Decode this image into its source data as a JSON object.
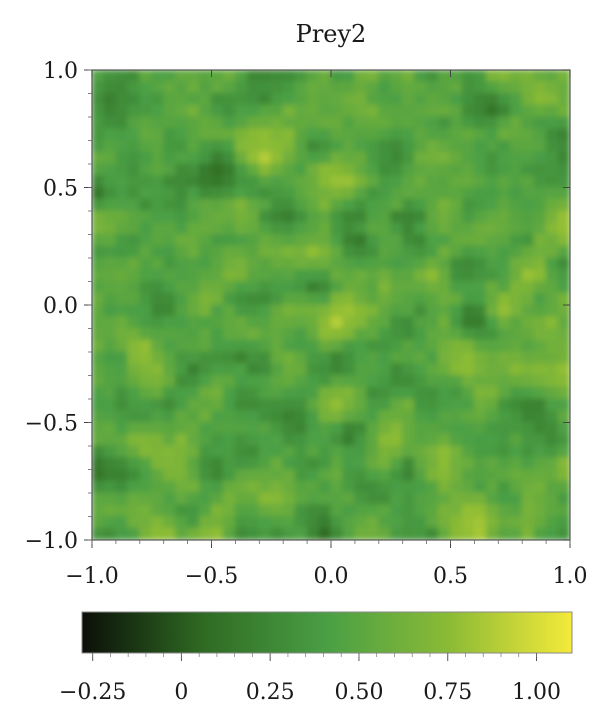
{
  "chart_data": {
    "type": "heatmap",
    "title": "Prey2",
    "xlabel": "",
    "ylabel": "",
    "xlim": [
      -1.0,
      1.0
    ],
    "ylim": [
      -1.0,
      1.0
    ],
    "xticks": [
      "-1.0",
      "-0.5",
      "0.0",
      "0.5",
      "1.0"
    ],
    "yticks": [
      "1.0",
      "0.5",
      "0.0",
      "-0.5",
      "-1.0"
    ],
    "grid_resolution": 40,
    "colorbar": {
      "range": [
        -0.28,
        1.1
      ],
      "ticks": [
        "-0.25",
        "0",
        "0.25",
        "0.50",
        "0.75",
        "1.00"
      ],
      "tick_values": [
        -0.25,
        0,
        0.25,
        0.5,
        0.75,
        1.0
      ],
      "colors": [
        "#0b0f08",
        "#2f6b23",
        "#4a9f45",
        "#8bbb35",
        "#f5ea3a"
      ],
      "placement": "bottom"
    },
    "noise": {
      "mean": 0.5,
      "amplitude": 0.32,
      "seed": 7
    }
  }
}
